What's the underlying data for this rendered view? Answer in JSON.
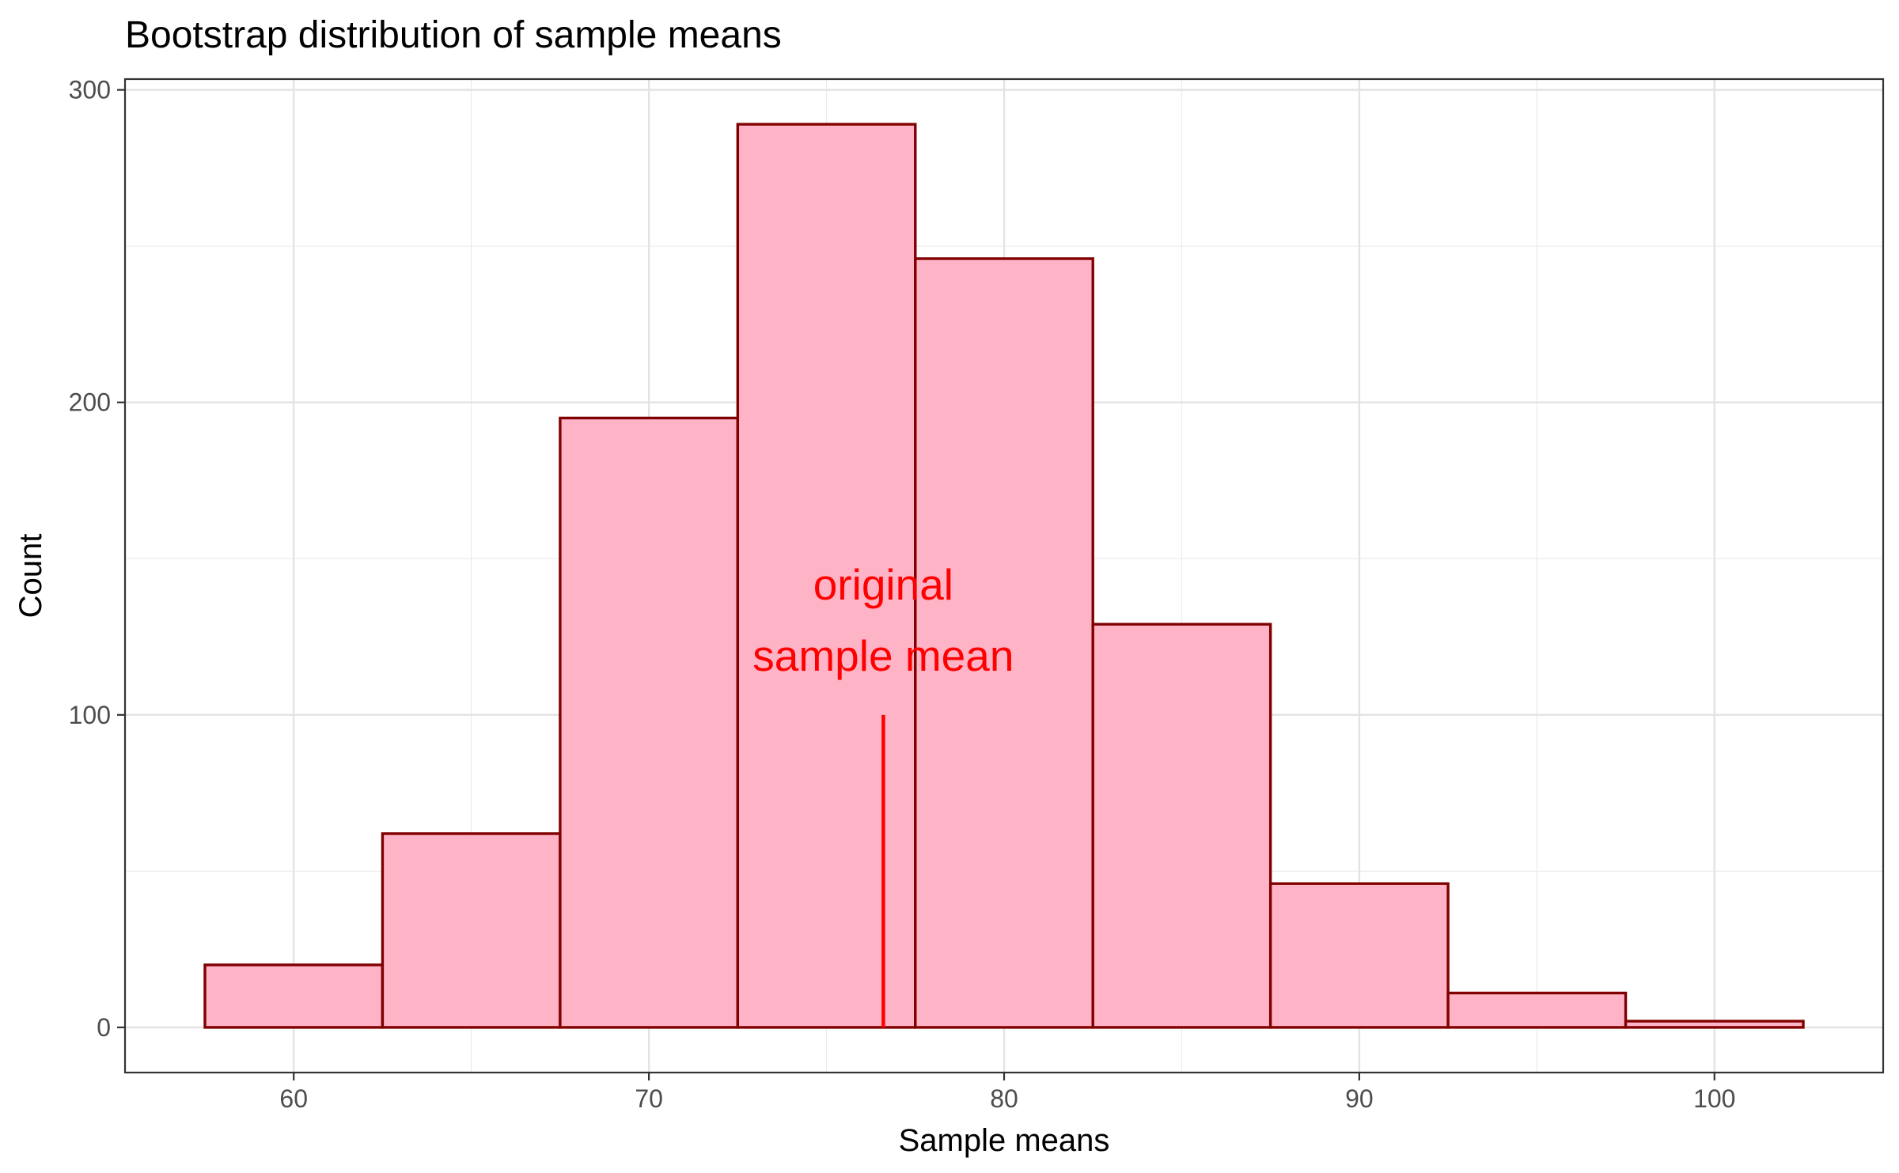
{
  "chart_data": {
    "type": "bar",
    "subtype": "histogram",
    "title": "Bootstrap distribution of sample means",
    "xlabel": "Sample means",
    "ylabel": "Count",
    "bin_width": 5,
    "bins": [
      {
        "start": 57.5,
        "end": 62.5,
        "count": 20
      },
      {
        "start": 62.5,
        "end": 67.5,
        "count": 62
      },
      {
        "start": 67.5,
        "end": 72.5,
        "count": 195
      },
      {
        "start": 72.5,
        "end": 77.5,
        "count": 289
      },
      {
        "start": 77.5,
        "end": 82.5,
        "count": 246
      },
      {
        "start": 82.5,
        "end": 87.5,
        "count": 129
      },
      {
        "start": 87.5,
        "end": 92.5,
        "count": 46
      },
      {
        "start": 92.5,
        "end": 97.5,
        "count": 11
      },
      {
        "start": 97.5,
        "end": 102.5,
        "count": 2
      }
    ],
    "xlim": [
      55.25,
      104.75
    ],
    "ylim": [
      -14.45,
      303.45
    ],
    "x_ticks": [
      60,
      70,
      80,
      90,
      100
    ],
    "y_ticks": [
      0,
      100,
      200,
      300
    ],
    "grid": true,
    "bar_fill": "#FFB3C6",
    "bar_outline": "#800000",
    "annotation": {
      "line_x": 76.6,
      "line_y_from": 0,
      "line_y_to": 100,
      "lines": [
        "original",
        "sample mean"
      ],
      "color": "#FF0000"
    }
  }
}
